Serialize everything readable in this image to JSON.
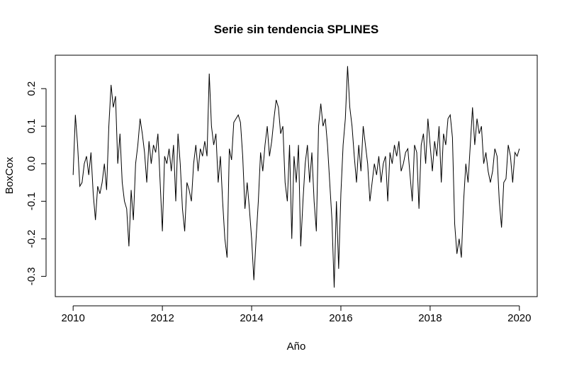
{
  "chart_data": {
    "type": "line",
    "title": "Serie sin tendencia SPLINES",
    "x_label": "Año",
    "y_label": "BoxCox",
    "color": "#000000",
    "xlim": [
      2009.6,
      2020.4
    ],
    "ylim": [
      -0.354,
      0.289
    ],
    "xticks": [
      2010,
      2012,
      2014,
      2016,
      2018,
      2020
    ],
    "yticks": [
      -0.3,
      -0.2,
      -0.1,
      {
        "value": 0,
        "label": "0.0"
      },
      0.1,
      0.2
    ],
    "x": [
      2010.0,
      2010.05,
      2010.1,
      2010.15,
      2010.2,
      2010.25,
      2010.3,
      2010.35,
      2010.4,
      2010.45,
      2010.5,
      2010.55,
      2010.6,
      2010.65,
      2010.7,
      2010.75,
      2010.8,
      2010.85,
      2010.9,
      2010.95,
      2011.0,
      2011.05,
      2011.1,
      2011.15,
      2011.2,
      2011.25,
      2011.3,
      2011.35,
      2011.4,
      2011.45,
      2011.5,
      2011.55,
      2011.6,
      2011.65,
      2011.7,
      2011.75,
      2011.8,
      2011.85,
      2011.9,
      2011.95,
      2012.0,
      2012.05,
      2012.1,
      2012.15,
      2012.2,
      2012.25,
      2012.3,
      2012.35,
      2012.4,
      2012.45,
      2012.5,
      2012.55,
      2012.6,
      2012.65,
      2012.7,
      2012.75,
      2012.8,
      2012.85,
      2012.9,
      2012.95,
      2013.0,
      2013.05,
      2013.1,
      2013.15,
      2013.2,
      2013.25,
      2013.3,
      2013.35,
      2013.4,
      2013.45,
      2013.5,
      2013.55,
      2013.6,
      2013.65,
      2013.7,
      2013.75,
      2013.8,
      2013.85,
      2013.9,
      2013.95,
      2014.0,
      2014.05,
      2014.1,
      2014.15,
      2014.2,
      2014.25,
      2014.3,
      2014.35,
      2014.4,
      2014.45,
      2014.5,
      2014.55,
      2014.6,
      2014.65,
      2014.7,
      2014.75,
      2014.8,
      2014.85,
      2014.9,
      2014.95,
      2015.0,
      2015.05,
      2015.1,
      2015.15,
      2015.2,
      2015.25,
      2015.3,
      2015.35,
      2015.4,
      2015.45,
      2015.5,
      2015.55,
      2015.6,
      2015.65,
      2015.7,
      2015.75,
      2015.8,
      2015.85,
      2015.9,
      2015.95,
      2016.0,
      2016.05,
      2016.1,
      2016.15,
      2016.2,
      2016.25,
      2016.3,
      2016.35,
      2016.4,
      2016.45,
      2016.5,
      2016.55,
      2016.6,
      2016.65,
      2016.7,
      2016.75,
      2016.8,
      2016.85,
      2016.9,
      2016.95,
      2017.0,
      2017.05,
      2017.1,
      2017.15,
      2017.2,
      2017.25,
      2017.3,
      2017.35,
      2017.4,
      2017.45,
      2017.5,
      2017.55,
      2017.6,
      2017.65,
      2017.7,
      2017.75,
      2017.8,
      2017.85,
      2017.9,
      2017.95,
      2018.0,
      2018.05,
      2018.1,
      2018.15,
      2018.2,
      2018.25,
      2018.3,
      2018.35,
      2018.4,
      2018.45,
      2018.5,
      2018.55,
      2018.6,
      2018.65,
      2018.7,
      2018.75,
      2018.8,
      2018.85,
      2018.9,
      2018.95,
      2019.0,
      2019.05,
      2019.1,
      2019.15,
      2019.2,
      2019.25,
      2019.3,
      2019.35,
      2019.4,
      2019.45,
      2019.5,
      2019.55,
      2019.6,
      2019.65,
      2019.7,
      2019.75,
      2019.8,
      2019.85,
      2019.9,
      2019.95,
      2020.0
    ],
    "values": [
      -0.03,
      0.13,
      0.05,
      -0.06,
      -0.05,
      0.0,
      0.02,
      -0.03,
      0.03,
      -0.08,
      -0.15,
      -0.06,
      -0.08,
      -0.05,
      0.0,
      -0.07,
      0.1,
      0.21,
      0.15,
      0.18,
      0.0,
      0.08,
      -0.05,
      -0.1,
      -0.12,
      -0.22,
      -0.07,
      -0.15,
      0.0,
      0.05,
      0.12,
      0.08,
      0.03,
      -0.05,
      0.06,
      0.0,
      0.05,
      0.03,
      0.08,
      -0.05,
      -0.18,
      0.02,
      0.0,
      0.04,
      -0.02,
      0.05,
      -0.1,
      0.08,
      0.0,
      -0.12,
      -0.18,
      -0.05,
      -0.07,
      -0.1,
      0.0,
      0.05,
      -0.02,
      0.04,
      0.02,
      0.06,
      0.02,
      0.24,
      0.1,
      0.05,
      0.08,
      -0.05,
      0.02,
      -0.1,
      -0.2,
      -0.25,
      0.04,
      0.01,
      0.11,
      0.12,
      0.13,
      0.11,
      0.02,
      -0.12,
      -0.05,
      -0.12,
      -0.2,
      -0.31,
      -0.2,
      -0.1,
      0.03,
      -0.02,
      0.05,
      0.1,
      0.02,
      0.06,
      0.12,
      0.17,
      0.15,
      0.08,
      0.1,
      -0.05,
      -0.1,
      0.05,
      -0.2,
      0.02,
      -0.05,
      0.05,
      -0.22,
      -0.1,
      0.0,
      0.05,
      -0.05,
      0.03,
      -0.1,
      -0.18,
      0.1,
      0.16,
      0.1,
      0.12,
      0.05,
      -0.05,
      -0.15,
      -0.33,
      -0.1,
      -0.28,
      -0.08,
      0.05,
      0.12,
      0.26,
      0.15,
      0.1,
      0.02,
      -0.05,
      0.05,
      -0.02,
      0.1,
      0.05,
      0.0,
      -0.1,
      -0.05,
      0.0,
      -0.03,
      0.02,
      -0.05,
      0.0,
      0.02,
      -0.1,
      0.03,
      0.0,
      0.05,
      0.02,
      0.06,
      -0.02,
      0.0,
      0.03,
      0.04,
      -0.03,
      -0.1,
      0.05,
      0.03,
      -0.12,
      0.05,
      0.08,
      0.0,
      0.12,
      0.05,
      -0.02,
      0.06,
      0.02,
      0.1,
      -0.05,
      0.08,
      0.05,
      0.12,
      0.13,
      0.07,
      -0.16,
      -0.24,
      -0.2,
      -0.25,
      -0.1,
      0.0,
      -0.05,
      0.05,
      0.15,
      0.05,
      0.12,
      0.08,
      0.1,
      0.0,
      0.03,
      -0.02,
      -0.05,
      -0.02,
      0.04,
      0.02,
      -0.1,
      -0.17,
      -0.05,
      -0.04,
      0.05,
      0.02,
      -0.05,
      0.03,
      0.02,
      0.04
    ]
  }
}
